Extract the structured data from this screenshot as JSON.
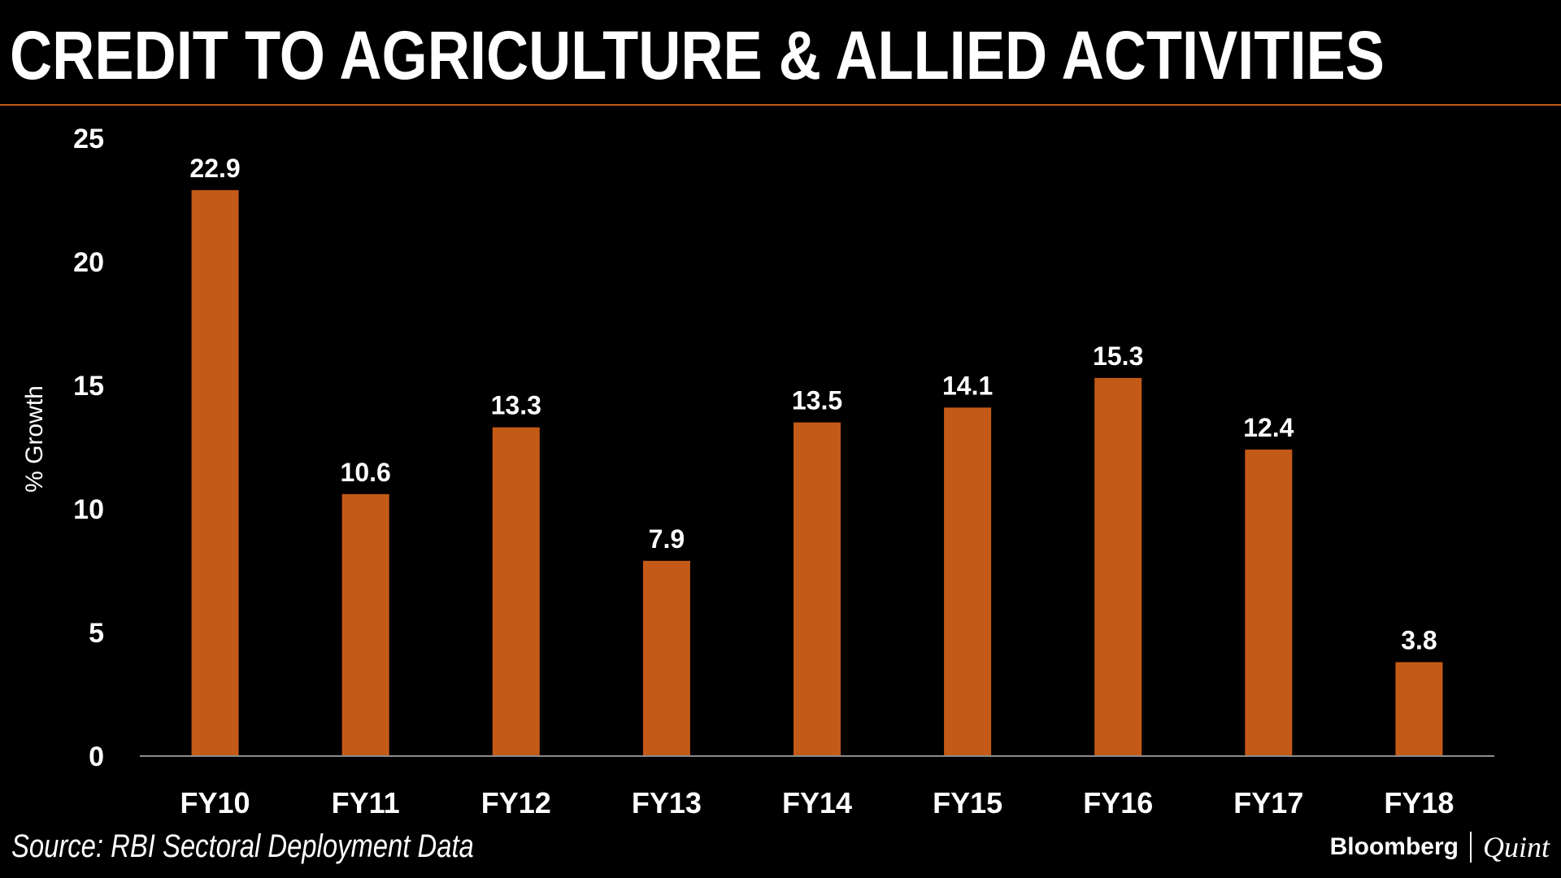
{
  "title": "CREDIT TO AGRICULTURE & ALLIED ACTIVITIES",
  "source": "Source: RBI Sectoral Deployment Data",
  "brand": {
    "primary": "Bloomberg",
    "secondary": "Quint"
  },
  "colors": {
    "background": "#000000",
    "bar": "#c45a17",
    "text": "#ffffff",
    "axis": "#8c8c8c"
  },
  "chart_data": {
    "type": "bar",
    "categories": [
      "FY10",
      "FY11",
      "FY12",
      "FY13",
      "FY14",
      "FY15",
      "FY16",
      "FY17",
      "FY18"
    ],
    "values": [
      22.9,
      10.6,
      13.3,
      7.9,
      13.5,
      14.1,
      15.3,
      12.4,
      3.8
    ],
    "data_labels": [
      "22.9",
      "10.6",
      "13.3",
      "7.9",
      "13.5",
      "14.1",
      "15.3",
      "12.4",
      "3.8"
    ],
    "ylabel": "% Growth",
    "ylim": [
      0,
      25
    ],
    "yticks": [
      0,
      5,
      10,
      15,
      20,
      25
    ],
    "grid": false,
    "legend": "none"
  }
}
